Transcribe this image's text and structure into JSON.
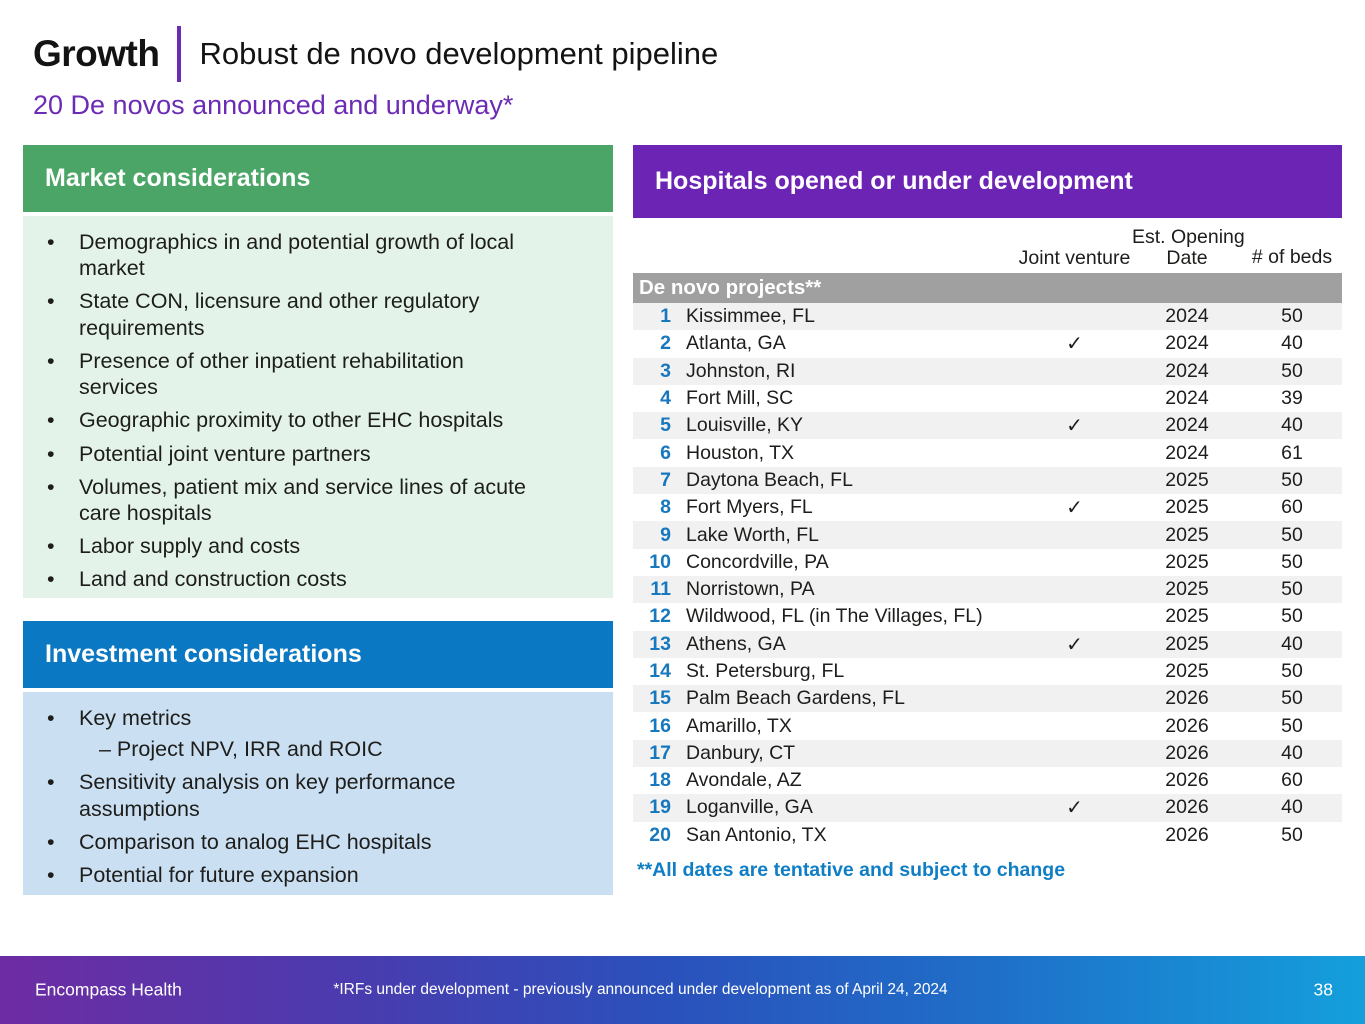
{
  "header": {
    "kicker": "Growth",
    "title": "Robust de novo development pipeline",
    "subtitle": "20 De novos announced and underway*"
  },
  "market_box": {
    "title": "Market considerations",
    "bullets": [
      "Demographics in and potential growth of local market",
      "State CON, licensure and other regulatory requirements",
      "Presence of other inpatient rehabilitation services",
      "Geographic proximity to other EHC hospitals",
      "Potential joint venture partners",
      "Volumes, patient mix and service lines of acute care hospitals",
      "Labor supply and costs",
      "Land and construction costs"
    ]
  },
  "investment_box": {
    "title": "Investment considerations",
    "bullet_key_metrics": "Key metrics",
    "sub_bullet": "– Project NPV, IRR and ROIC",
    "bullets_after": [
      "Sensitivity analysis on key performance assumptions",
      "Comparison to analog EHC hospitals",
      "Potential for future expansion"
    ]
  },
  "pipeline": {
    "title": "Hospitals opened or under development",
    "col_joint_venture": "Joint venture",
    "col_est_opening_line1": "Est. Opening",
    "col_est_opening_line2": "Date",
    "col_beds": "# of beds",
    "section_label": "De novo projects**",
    "rows": [
      {
        "num": "1",
        "city": "Kissimmee, FL",
        "jv": "",
        "year": "2024",
        "beds": "50"
      },
      {
        "num": "2",
        "city": "Atlanta, GA",
        "jv": "✓",
        "year": "2024",
        "beds": "40"
      },
      {
        "num": "3",
        "city": "Johnston, RI",
        "jv": "",
        "year": "2024",
        "beds": "50"
      },
      {
        "num": "4",
        "city": "Fort Mill, SC",
        "jv": "",
        "year": "2024",
        "beds": "39"
      },
      {
        "num": "5",
        "city": "Louisville, KY",
        "jv": "✓",
        "year": "2024",
        "beds": "40"
      },
      {
        "num": "6",
        "city": "Houston, TX",
        "jv": "",
        "year": "2024",
        "beds": "61"
      },
      {
        "num": "7",
        "city": "Daytona Beach, FL",
        "jv": "",
        "year": "2025",
        "beds": "50"
      },
      {
        "num": "8",
        "city": "Fort Myers, FL",
        "jv": "✓",
        "year": "2025",
        "beds": "60"
      },
      {
        "num": "9",
        "city": "Lake Worth, FL",
        "jv": "",
        "year": "2025",
        "beds": "50"
      },
      {
        "num": "10",
        "city": "Concordville, PA",
        "jv": "",
        "year": "2025",
        "beds": "50"
      },
      {
        "num": "11",
        "city": "Norristown, PA",
        "jv": "",
        "year": "2025",
        "beds": "50"
      },
      {
        "num": "12",
        "city": "Wildwood, FL (in The Villages, FL)",
        "jv": "",
        "year": "2025",
        "beds": "50"
      },
      {
        "num": "13",
        "city": "Athens, GA",
        "jv": "✓",
        "year": "2025",
        "beds": "40"
      },
      {
        "num": "14",
        "city": "St. Petersburg, FL",
        "jv": "",
        "year": "2025",
        "beds": "50"
      },
      {
        "num": "15",
        "city": "Palm Beach Gardens, FL",
        "jv": "",
        "year": "2026",
        "beds": "50"
      },
      {
        "num": "16",
        "city": "Amarillo, TX",
        "jv": "",
        "year": "2026",
        "beds": "50"
      },
      {
        "num": "17",
        "city": "Danbury, CT",
        "jv": "",
        "year": "2026",
        "beds": "40"
      },
      {
        "num": "18",
        "city": "Avondale, AZ",
        "jv": "",
        "year": "2026",
        "beds": "60"
      },
      {
        "num": "19",
        "city": "Loganville, GA",
        "jv": "✓",
        "year": "2026",
        "beds": "40"
      },
      {
        "num": "20",
        "city": "San Antonio, TX",
        "jv": "",
        "year": "2026",
        "beds": "50"
      }
    ],
    "footnote": "**All dates are tentative and subject to change"
  },
  "footer": {
    "brand": "Encompass Health",
    "note": "*IRFs under development - previously announced under development as of April 24, 2024",
    "page": "38"
  },
  "colors": {
    "green_header": "#4aa567",
    "green_body": "#e4f3ea",
    "blue_header": "#0a78c2",
    "blue_body": "#cbdff2",
    "purple_header": "#6c24b4",
    "purple_accent": "#6c2bb5",
    "gray_band": "#a0a0a0",
    "row_stripe": "#f1f1f1",
    "row_number_blue": "#1878be",
    "footnote_blue": "#0f7ec4",
    "footer_gradient_left": "#6e2ca3",
    "footer_gradient_mid": "#2b50bb",
    "footer_gradient_right": "#149fdc"
  }
}
